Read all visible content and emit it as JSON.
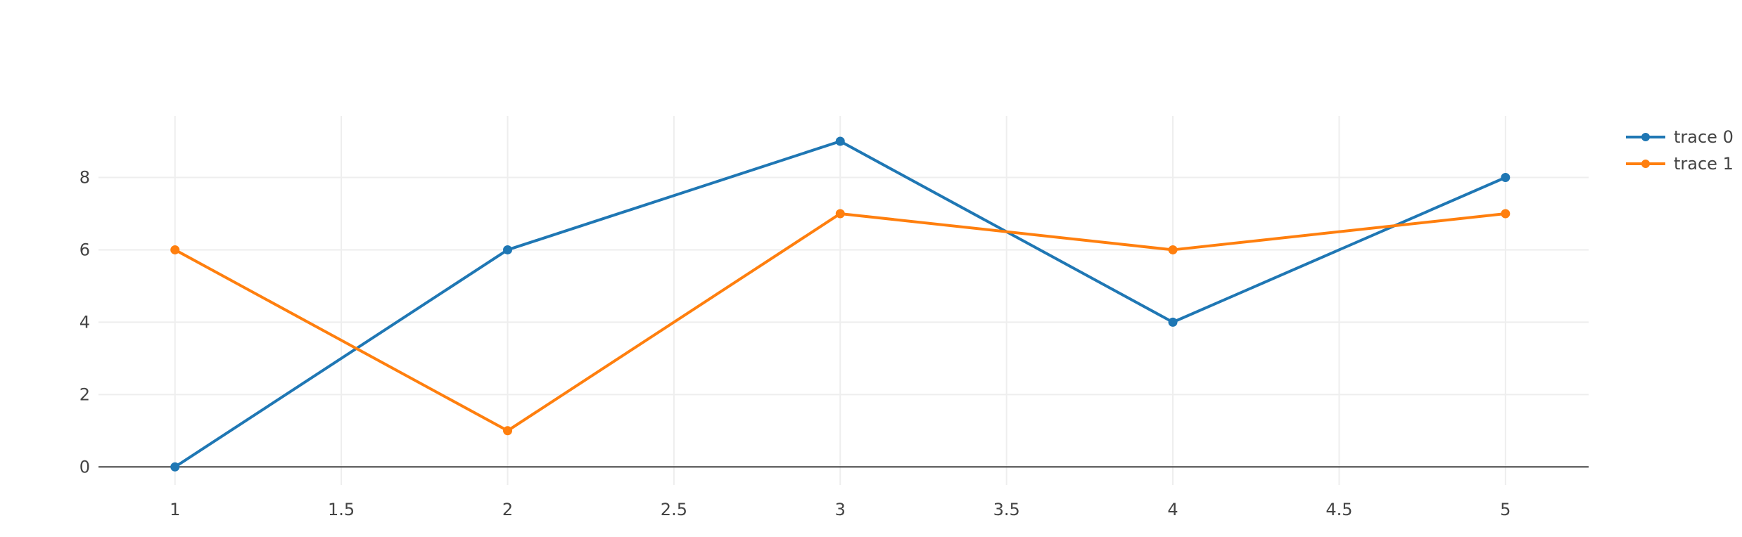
{
  "chart_data": {
    "type": "line",
    "x": [
      1,
      2,
      3,
      4,
      5
    ],
    "xlim": [
      0.77,
      5.25
    ],
    "ylim": [
      -0.5,
      9.7
    ],
    "x_ticks": [
      1,
      1.5,
      2,
      2.5,
      3,
      3.5,
      4,
      4.5,
      5
    ],
    "x_tick_labels": [
      "1",
      "1.5",
      "2",
      "2.5",
      "3",
      "3.5",
      "4",
      "4.5",
      "5"
    ],
    "y_ticks": [
      0,
      2,
      4,
      6,
      8
    ],
    "y_tick_labels": [
      "0",
      "2",
      "4",
      "6",
      "8"
    ],
    "grid": true,
    "legend_position": "top-right",
    "series": [
      {
        "name": "trace 0",
        "values": [
          0,
          6,
          9,
          4,
          8
        ],
        "color": "#1f77b4"
      },
      {
        "name": "trace 1",
        "values": [
          6,
          1,
          7,
          6,
          7
        ],
        "color": "#ff7f0e"
      }
    ]
  }
}
